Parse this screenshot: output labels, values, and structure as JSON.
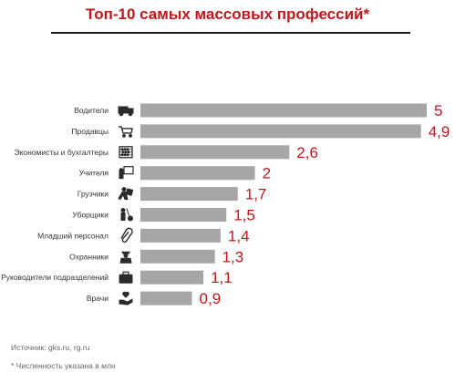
{
  "chart_data": {
    "type": "bar",
    "orientation": "horizontal",
    "title": "Топ-10 самых массовых профессий*",
    "categories": [
      "Водители",
      "Продавцы",
      "Экономисты и бухгалтеры",
      "Учителя",
      "Грузчики",
      "Уборщики",
      "Младший персонал",
      "Охранники",
      "Руководители подразделений",
      "Врачи"
    ],
    "values": [
      5,
      4.9,
      2.6,
      2,
      1.7,
      1.5,
      1.4,
      1.3,
      1.1,
      0.9
    ],
    "value_labels": [
      "5",
      "4,9",
      "2,6",
      "2",
      "1,7",
      "1,5",
      "1,4",
      "1,3",
      "1,1",
      "0,9"
    ],
    "icons": [
      "truck-icon",
      "shopping-cart-icon",
      "abacus-icon",
      "teacher-board-icon",
      "loader-carrying-box-icon",
      "cleaner-mop-icon",
      "paperclip-icon",
      "security-guard-icon",
      "briefcase-icon",
      "doctor-hand-heart-icon"
    ],
    "xlim": [
      0,
      5
    ],
    "grid": false,
    "bar_color": "#a6a6a6",
    "value_color": "#c0171b"
  },
  "source": "Источник: gks.ru, rg.ru",
  "footnote": "* Численность указана в млн",
  "colors": {
    "accent": "#c0171b",
    "bar": "#a6a6a6",
    "rule": "#1a1a1a"
  }
}
